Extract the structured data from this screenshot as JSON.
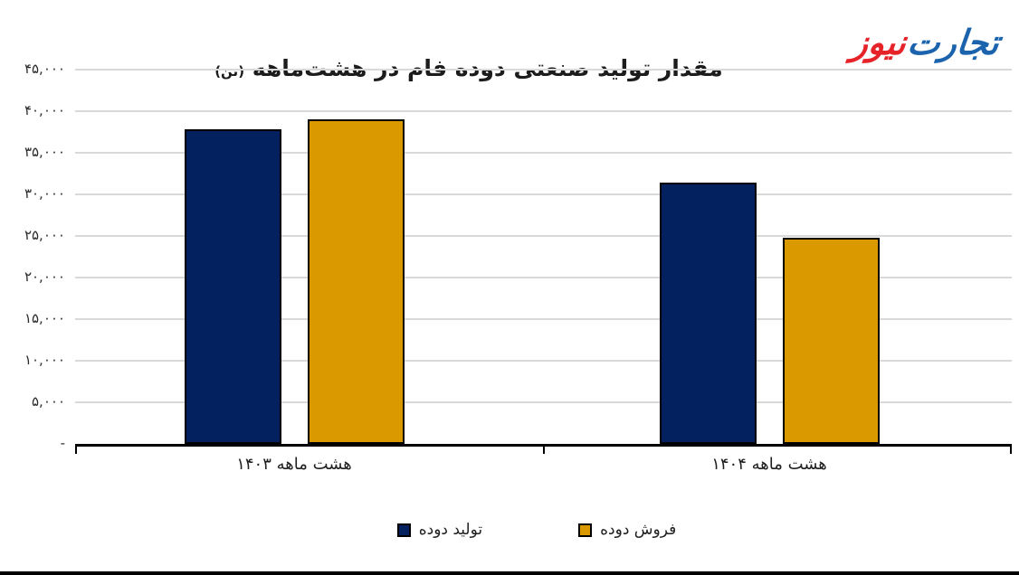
{
  "header": {
    "title_main": "مقدار تولید صنعتی دوده فام در هشت‌ماهه",
    "title_unit": "(تن)",
    "logo": {
      "part1": "تجارت",
      "part2": "نیوز",
      "part1_color": "#1b64ad",
      "part2_color": "#e52329"
    }
  },
  "chart_data": {
    "type": "bar",
    "title": "مقدار تولید صنعتی دوده فام در هشت‌ماهه (تن)",
    "categories": [
      "هشت ماهه ۱۴۰۳",
      "هشت ماهه ۱۴۰۴"
    ],
    "series": [
      {
        "name": "تولید دوده",
        "color": "#03215e",
        "values": [
          37800,
          31400
        ]
      },
      {
        "name": "فروش دوده",
        "color": "#db9900",
        "values": [
          39000,
          24800
        ]
      }
    ],
    "ylim": [
      0,
      45000
    ],
    "ytick_step": 5000,
    "ytick_labels": [
      "-",
      "۵,۰۰۰",
      "۱۰,۰۰۰",
      "۱۵,۰۰۰",
      "۲۰,۰۰۰",
      "۲۵,۰۰۰",
      "۳۰,۰۰۰",
      "۳۵,۰۰۰",
      "۴۰,۰۰۰",
      "۴۵,۰۰۰"
    ],
    "grid": true,
    "gridline_color": "#d9d9d9",
    "axis_color": "#000000",
    "legend_position": "bottom",
    "bar_border_color": "#000000"
  }
}
